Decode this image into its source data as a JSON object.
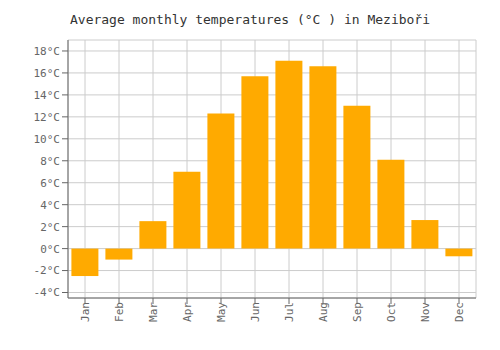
{
  "chart_data": {
    "type": "bar",
    "title": "Average monthly temperatures (°C ) in Meziboři",
    "categories": [
      "Jan",
      "Feb",
      "Mar",
      "Apr",
      "May",
      "Jun",
      "Jul",
      "Aug",
      "Sep",
      "Oct",
      "Nov",
      "Dec"
    ],
    "values": [
      -2.5,
      -1.0,
      2.5,
      7.0,
      12.3,
      15.7,
      17.1,
      16.6,
      13.0,
      8.1,
      2.6,
      -0.7
    ],
    "color": "#FFAA00",
    "ylim": [
      -4.5,
      19
    ],
    "yticks": [
      {
        "value": -4,
        "label": "-4°C"
      },
      {
        "value": -2,
        "label": "-2°C"
      },
      {
        "value": 0,
        "label": "0°C"
      },
      {
        "value": 2,
        "label": "2°C"
      },
      {
        "value": 4,
        "label": "4°C"
      },
      {
        "value": 6,
        "label": "6°C"
      },
      {
        "value": 8,
        "label": "8°C"
      },
      {
        "value": 10,
        "label": "10°C"
      },
      {
        "value": 12,
        "label": "12°C"
      },
      {
        "value": 14,
        "label": "14°C"
      },
      {
        "value": 16,
        "label": "16°C"
      },
      {
        "value": 18,
        "label": "18°C"
      }
    ],
    "grid": true
  }
}
